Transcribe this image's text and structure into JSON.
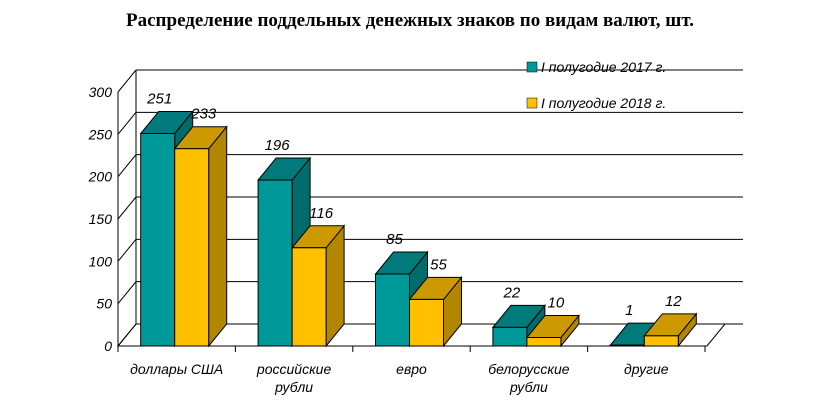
{
  "chart_data": {
    "type": "bar",
    "title": "Распределение поддельных денежных знаков по видам валют, шт.",
    "categories": [
      [
        "доллары США"
      ],
      [
        "российские",
        "рубли"
      ],
      [
        "евро"
      ],
      [
        "белорусские",
        "рубли"
      ],
      [
        "другие"
      ]
    ],
    "series": [
      {
        "name": "I полугодие 2017 г.",
        "values": [
          251,
          196,
          85,
          22,
          1
        ]
      },
      {
        "name": "I полугодие 2018 г.",
        "values": [
          233,
          116,
          55,
          10,
          12
        ]
      }
    ],
    "ylim": [
      0,
      300
    ],
    "yticks": [
      0,
      50,
      100,
      150,
      200,
      250,
      300
    ],
    "grid": true,
    "legend_position": "top-right",
    "three_d": true
  },
  "colors": {
    "series_1": "#009999",
    "series_2": "#ffc000",
    "grid": "#000000"
  }
}
